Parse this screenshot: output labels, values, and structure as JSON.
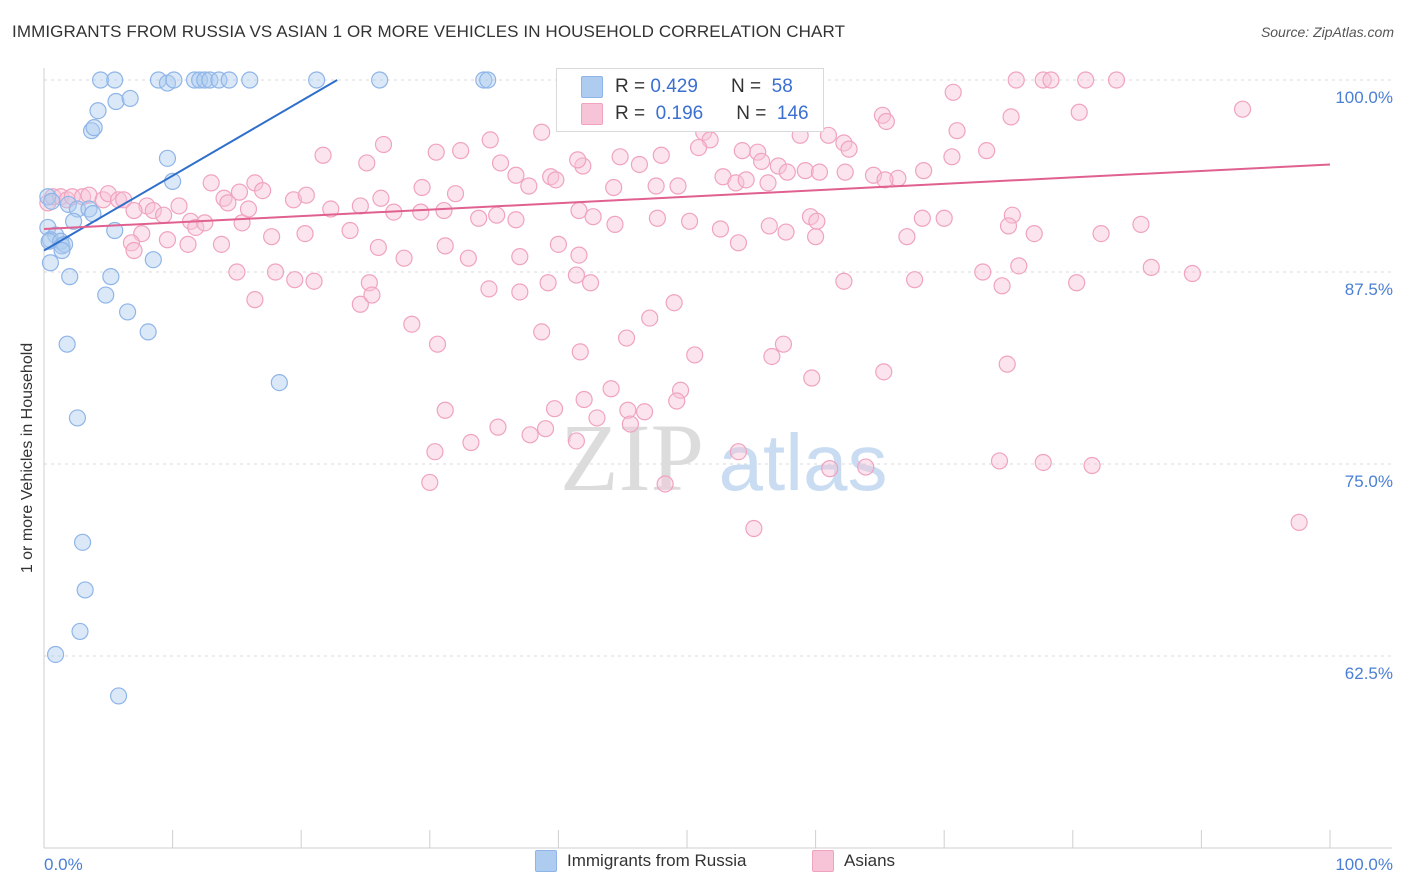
{
  "chart_data": {
    "type": "scatter",
    "title": "IMMIGRANTS FROM RUSSIA VS ASIAN 1 OR MORE VEHICLES IN HOUSEHOLD CORRELATION CHART",
    "source": "Source: ZipAtlas.com",
    "ylabel": "1 or more Vehicles in Household",
    "xlim": [
      0,
      100
    ],
    "ylim": [
      50,
      100
    ],
    "x_tick_labels": [
      "0.0%",
      "100.0%"
    ],
    "y_ticks": [
      {
        "value": 100,
        "label": "100.0%"
      },
      {
        "value": 87.5,
        "label": "87.5%"
      },
      {
        "value": 75,
        "label": "75.0%"
      },
      {
        "value": 62.5,
        "label": "62.5%"
      }
    ],
    "watermark": {
      "zip": "ZIP",
      "atlas": "atlas"
    },
    "legend_top": [
      {
        "r_label": "R =",
        "r_value": "0.429",
        "n_label": "N =",
        "n_value": "58"
      },
      {
        "r_label": "R =",
        "r_value": "0.196",
        "n_label": "N =",
        "n_value": "146"
      }
    ],
    "series": [
      {
        "name": "Immigrants from Russia",
        "color": "#8fb5e8",
        "fill": "#aecbf0",
        "line_color": "#2f6fcc",
        "trend": [
          [
            0,
            88.9
          ],
          [
            22.8,
            100
          ]
        ],
        "points": [
          [
            4.4,
            100
          ],
          [
            5.5,
            100
          ],
          [
            8.9,
            100
          ],
          [
            9.6,
            99.8
          ],
          [
            10.1,
            100
          ],
          [
            11.7,
            100
          ],
          [
            12.1,
            100
          ],
          [
            12.5,
            100
          ],
          [
            12.9,
            100
          ],
          [
            13.6,
            100
          ],
          [
            14.4,
            100
          ],
          [
            16.0,
            100
          ],
          [
            21.2,
            100
          ],
          [
            26.1,
            100
          ],
          [
            34.2,
            100
          ],
          [
            34.5,
            100
          ],
          [
            5.6,
            98.6
          ],
          [
            6.7,
            98.8
          ],
          [
            4.2,
            98.0
          ],
          [
            3.7,
            96.7
          ],
          [
            3.9,
            96.9
          ],
          [
            9.6,
            94.9
          ],
          [
            10.0,
            93.4
          ],
          [
            0.3,
            92.4
          ],
          [
            0.6,
            92.1
          ],
          [
            1.9,
            91.9
          ],
          [
            2.6,
            91.6
          ],
          [
            3.5,
            91.6
          ],
          [
            3.8,
            91.3
          ],
          [
            2.3,
            90.8
          ],
          [
            0.3,
            90.4
          ],
          [
            0.9,
            89.9
          ],
          [
            0.5,
            89.6
          ],
          [
            0.4,
            89.5
          ],
          [
            1.3,
            89.5
          ],
          [
            1.4,
            89.2
          ],
          [
            1.6,
            89.3
          ],
          [
            5.5,
            90.2
          ],
          [
            1.4,
            88.9
          ],
          [
            8.5,
            88.3
          ],
          [
            0.5,
            88.1
          ],
          [
            2.0,
            87.2
          ],
          [
            5.2,
            87.2
          ],
          [
            4.8,
            86.0
          ],
          [
            6.5,
            84.9
          ],
          [
            8.1,
            83.6
          ],
          [
            1.8,
            82.8
          ],
          [
            18.3,
            80.3
          ],
          [
            2.6,
            78.0
          ],
          [
            3.0,
            69.9
          ],
          [
            3.2,
            66.8
          ],
          [
            2.8,
            64.1
          ],
          [
            0.9,
            62.6
          ],
          [
            5.8,
            59.9
          ]
        ]
      },
      {
        "name": "Asians",
        "color": "#f0a3bf",
        "fill": "#f7c3d6",
        "line_color": "#e0608f",
        "trend": [
          [
            0,
            90.3
          ],
          [
            100,
            94.5
          ]
        ],
        "points": [
          [
            75.6,
            100
          ],
          [
            77.7,
            100
          ],
          [
            78.3,
            100
          ],
          [
            81.0,
            100
          ],
          [
            83.4,
            100
          ],
          [
            70.7,
            99.2
          ],
          [
            93.2,
            98.1
          ],
          [
            80.5,
            97.9
          ],
          [
            75.2,
            97.6
          ],
          [
            65.2,
            97.7
          ],
          [
            65.5,
            97.3
          ],
          [
            51.3,
            96.6
          ],
          [
            51.8,
            96.1
          ],
          [
            58.8,
            96.4
          ],
          [
            61.0,
            96.4
          ],
          [
            38.7,
            96.6
          ],
          [
            34.7,
            96.1
          ],
          [
            26.4,
            95.8
          ],
          [
            71.0,
            96.7
          ],
          [
            62.2,
            95.9
          ],
          [
            62.6,
            95.5
          ],
          [
            55.5,
            95.3
          ],
          [
            73.3,
            95.4
          ],
          [
            70.6,
            95.0
          ],
          [
            30.5,
            95.3
          ],
          [
            32.4,
            95.4
          ],
          [
            50.9,
            95.6
          ],
          [
            54.3,
            95.4
          ],
          [
            55.8,
            94.7
          ],
          [
            41.9,
            94.4
          ],
          [
            44.8,
            95.0
          ],
          [
            48.0,
            95.1
          ],
          [
            46.3,
            94.5
          ],
          [
            41.5,
            94.8
          ],
          [
            21.7,
            95.1
          ],
          [
            25.1,
            94.6
          ],
          [
            35.5,
            94.6
          ],
          [
            36.7,
            93.8
          ],
          [
            39.4,
            93.7
          ],
          [
            57.1,
            94.4
          ],
          [
            57.8,
            94.0
          ],
          [
            59.2,
            94.1
          ],
          [
            60.3,
            94.0
          ],
          [
            62.3,
            94.0
          ],
          [
            64.5,
            93.8
          ],
          [
            66.4,
            93.6
          ],
          [
            68.4,
            94.1
          ],
          [
            65.4,
            93.5
          ],
          [
            52.8,
            93.7
          ],
          [
            53.8,
            93.3
          ],
          [
            54.6,
            93.5
          ],
          [
            56.3,
            93.3
          ],
          [
            37.7,
            93.1
          ],
          [
            39.8,
            93.5
          ],
          [
            47.6,
            93.1
          ],
          [
            49.3,
            93.1
          ],
          [
            44.3,
            93.0
          ],
          [
            13.0,
            93.3
          ],
          [
            15.2,
            92.7
          ],
          [
            16.4,
            93.3
          ],
          [
            17.0,
            92.8
          ],
          [
            19.4,
            92.2
          ],
          [
            20.4,
            92.5
          ],
          [
            26.2,
            92.3
          ],
          [
            29.4,
            93.0
          ],
          [
            32.0,
            92.6
          ],
          [
            14.0,
            92.3
          ],
          [
            14.3,
            92.0
          ],
          [
            22.3,
            91.6
          ],
          [
            24.6,
            91.8
          ],
          [
            27.2,
            91.4
          ],
          [
            29.3,
            91.4
          ],
          [
            31.1,
            91.5
          ],
          [
            33.8,
            91.0
          ],
          [
            35.2,
            91.2
          ],
          [
            36.7,
            90.9
          ],
          [
            41.6,
            91.5
          ],
          [
            42.7,
            91.1
          ],
          [
            44.4,
            90.6
          ],
          [
            47.7,
            91.0
          ],
          [
            50.2,
            90.8
          ],
          [
            52.6,
            90.3
          ],
          [
            56.4,
            90.5
          ],
          [
            57.7,
            90.1
          ],
          [
            59.6,
            91.1
          ],
          [
            60.1,
            90.8
          ],
          [
            68.3,
            91.0
          ],
          [
            70.0,
            91.0
          ],
          [
            75.3,
            91.2
          ],
          [
            77.0,
            90.0
          ],
          [
            0.3,
            92.0
          ],
          [
            0.7,
            92.4
          ],
          [
            1.3,
            92.4
          ],
          [
            1.8,
            92.2
          ],
          [
            2.2,
            92.4
          ],
          [
            3.0,
            92.4
          ],
          [
            3.5,
            92.5
          ],
          [
            4.6,
            92.2
          ],
          [
            5.0,
            92.6
          ],
          [
            5.8,
            92.2
          ],
          [
            6.2,
            92.2
          ],
          [
            8.0,
            91.8
          ],
          [
            8.5,
            91.5
          ],
          [
            9.3,
            91.2
          ],
          [
            10.5,
            91.8
          ],
          [
            11.4,
            90.8
          ],
          [
            11.8,
            90.4
          ],
          [
            12.5,
            90.7
          ],
          [
            15.4,
            90.7
          ],
          [
            15.9,
            91.6
          ],
          [
            17.7,
            89.8
          ],
          [
            20.3,
            90.0
          ],
          [
            23.8,
            90.2
          ],
          [
            7.0,
            91.5
          ],
          [
            7.6,
            90.0
          ],
          [
            6.8,
            89.4
          ],
          [
            9.6,
            89.6
          ],
          [
            11.2,
            89.3
          ],
          [
            13.8,
            89.3
          ],
          [
            26.0,
            89.1
          ],
          [
            28.0,
            88.4
          ],
          [
            31.2,
            89.2
          ],
          [
            33.0,
            88.4
          ],
          [
            37.0,
            88.5
          ],
          [
            40.0,
            89.3
          ],
          [
            41.6,
            88.6
          ],
          [
            54.0,
            89.4
          ],
          [
            60.0,
            89.8
          ],
          [
            67.1,
            89.8
          ],
          [
            75.0,
            90.5
          ],
          [
            82.2,
            90.0
          ],
          [
            85.3,
            90.6
          ],
          [
            7.0,
            88.9
          ],
          [
            15.0,
            87.5
          ],
          [
            18.0,
            87.5
          ],
          [
            19.5,
            87.0
          ],
          [
            21.0,
            86.9
          ],
          [
            25.3,
            86.8
          ],
          [
            34.6,
            86.4
          ],
          [
            37.0,
            86.2
          ],
          [
            39.2,
            86.8
          ],
          [
            41.4,
            87.3
          ],
          [
            42.5,
            86.8
          ],
          [
            62.2,
            86.9
          ],
          [
            67.7,
            87.0
          ],
          [
            73.0,
            87.5
          ],
          [
            74.5,
            86.6
          ],
          [
            75.8,
            87.9
          ],
          [
            80.3,
            86.8
          ],
          [
            86.1,
            87.8
          ],
          [
            89.3,
            87.4
          ],
          [
            16.4,
            85.7
          ],
          [
            24.6,
            85.4
          ],
          [
            25.5,
            86.0
          ],
          [
            49.0,
            85.5
          ],
          [
            47.1,
            84.5
          ],
          [
            28.6,
            84.1
          ],
          [
            45.3,
            83.2
          ],
          [
            38.7,
            83.6
          ],
          [
            30.6,
            82.8
          ],
          [
            41.7,
            82.3
          ],
          [
            50.6,
            82.1
          ],
          [
            57.5,
            82.8
          ],
          [
            74.9,
            81.5
          ],
          [
            65.3,
            81.0
          ],
          [
            39.7,
            78.6
          ],
          [
            42.0,
            79.2
          ],
          [
            43.0,
            78.0
          ],
          [
            44.1,
            79.9
          ],
          [
            56.6,
            82.0
          ],
          [
            59.7,
            80.6
          ],
          [
            45.4,
            78.5
          ],
          [
            49.5,
            79.8
          ],
          [
            30.4,
            75.8
          ],
          [
            41.4,
            76.5
          ],
          [
            54.0,
            75.8
          ],
          [
            49.2,
            79.1
          ],
          [
            63.9,
            74.8
          ],
          [
            74.3,
            75.2
          ],
          [
            77.7,
            75.1
          ],
          [
            81.5,
            74.9
          ],
          [
            35.3,
            77.4
          ],
          [
            37.8,
            76.9
          ],
          [
            39.0,
            77.3
          ],
          [
            45.6,
            77.6
          ],
          [
            33.2,
            76.4
          ],
          [
            31.2,
            78.5
          ],
          [
            46.7,
            78.4
          ],
          [
            30.0,
            73.8
          ],
          [
            48.3,
            73.7
          ],
          [
            61.1,
            74.7
          ],
          [
            55.2,
            70.8
          ],
          [
            97.6,
            71.2
          ]
        ]
      }
    ]
  }
}
